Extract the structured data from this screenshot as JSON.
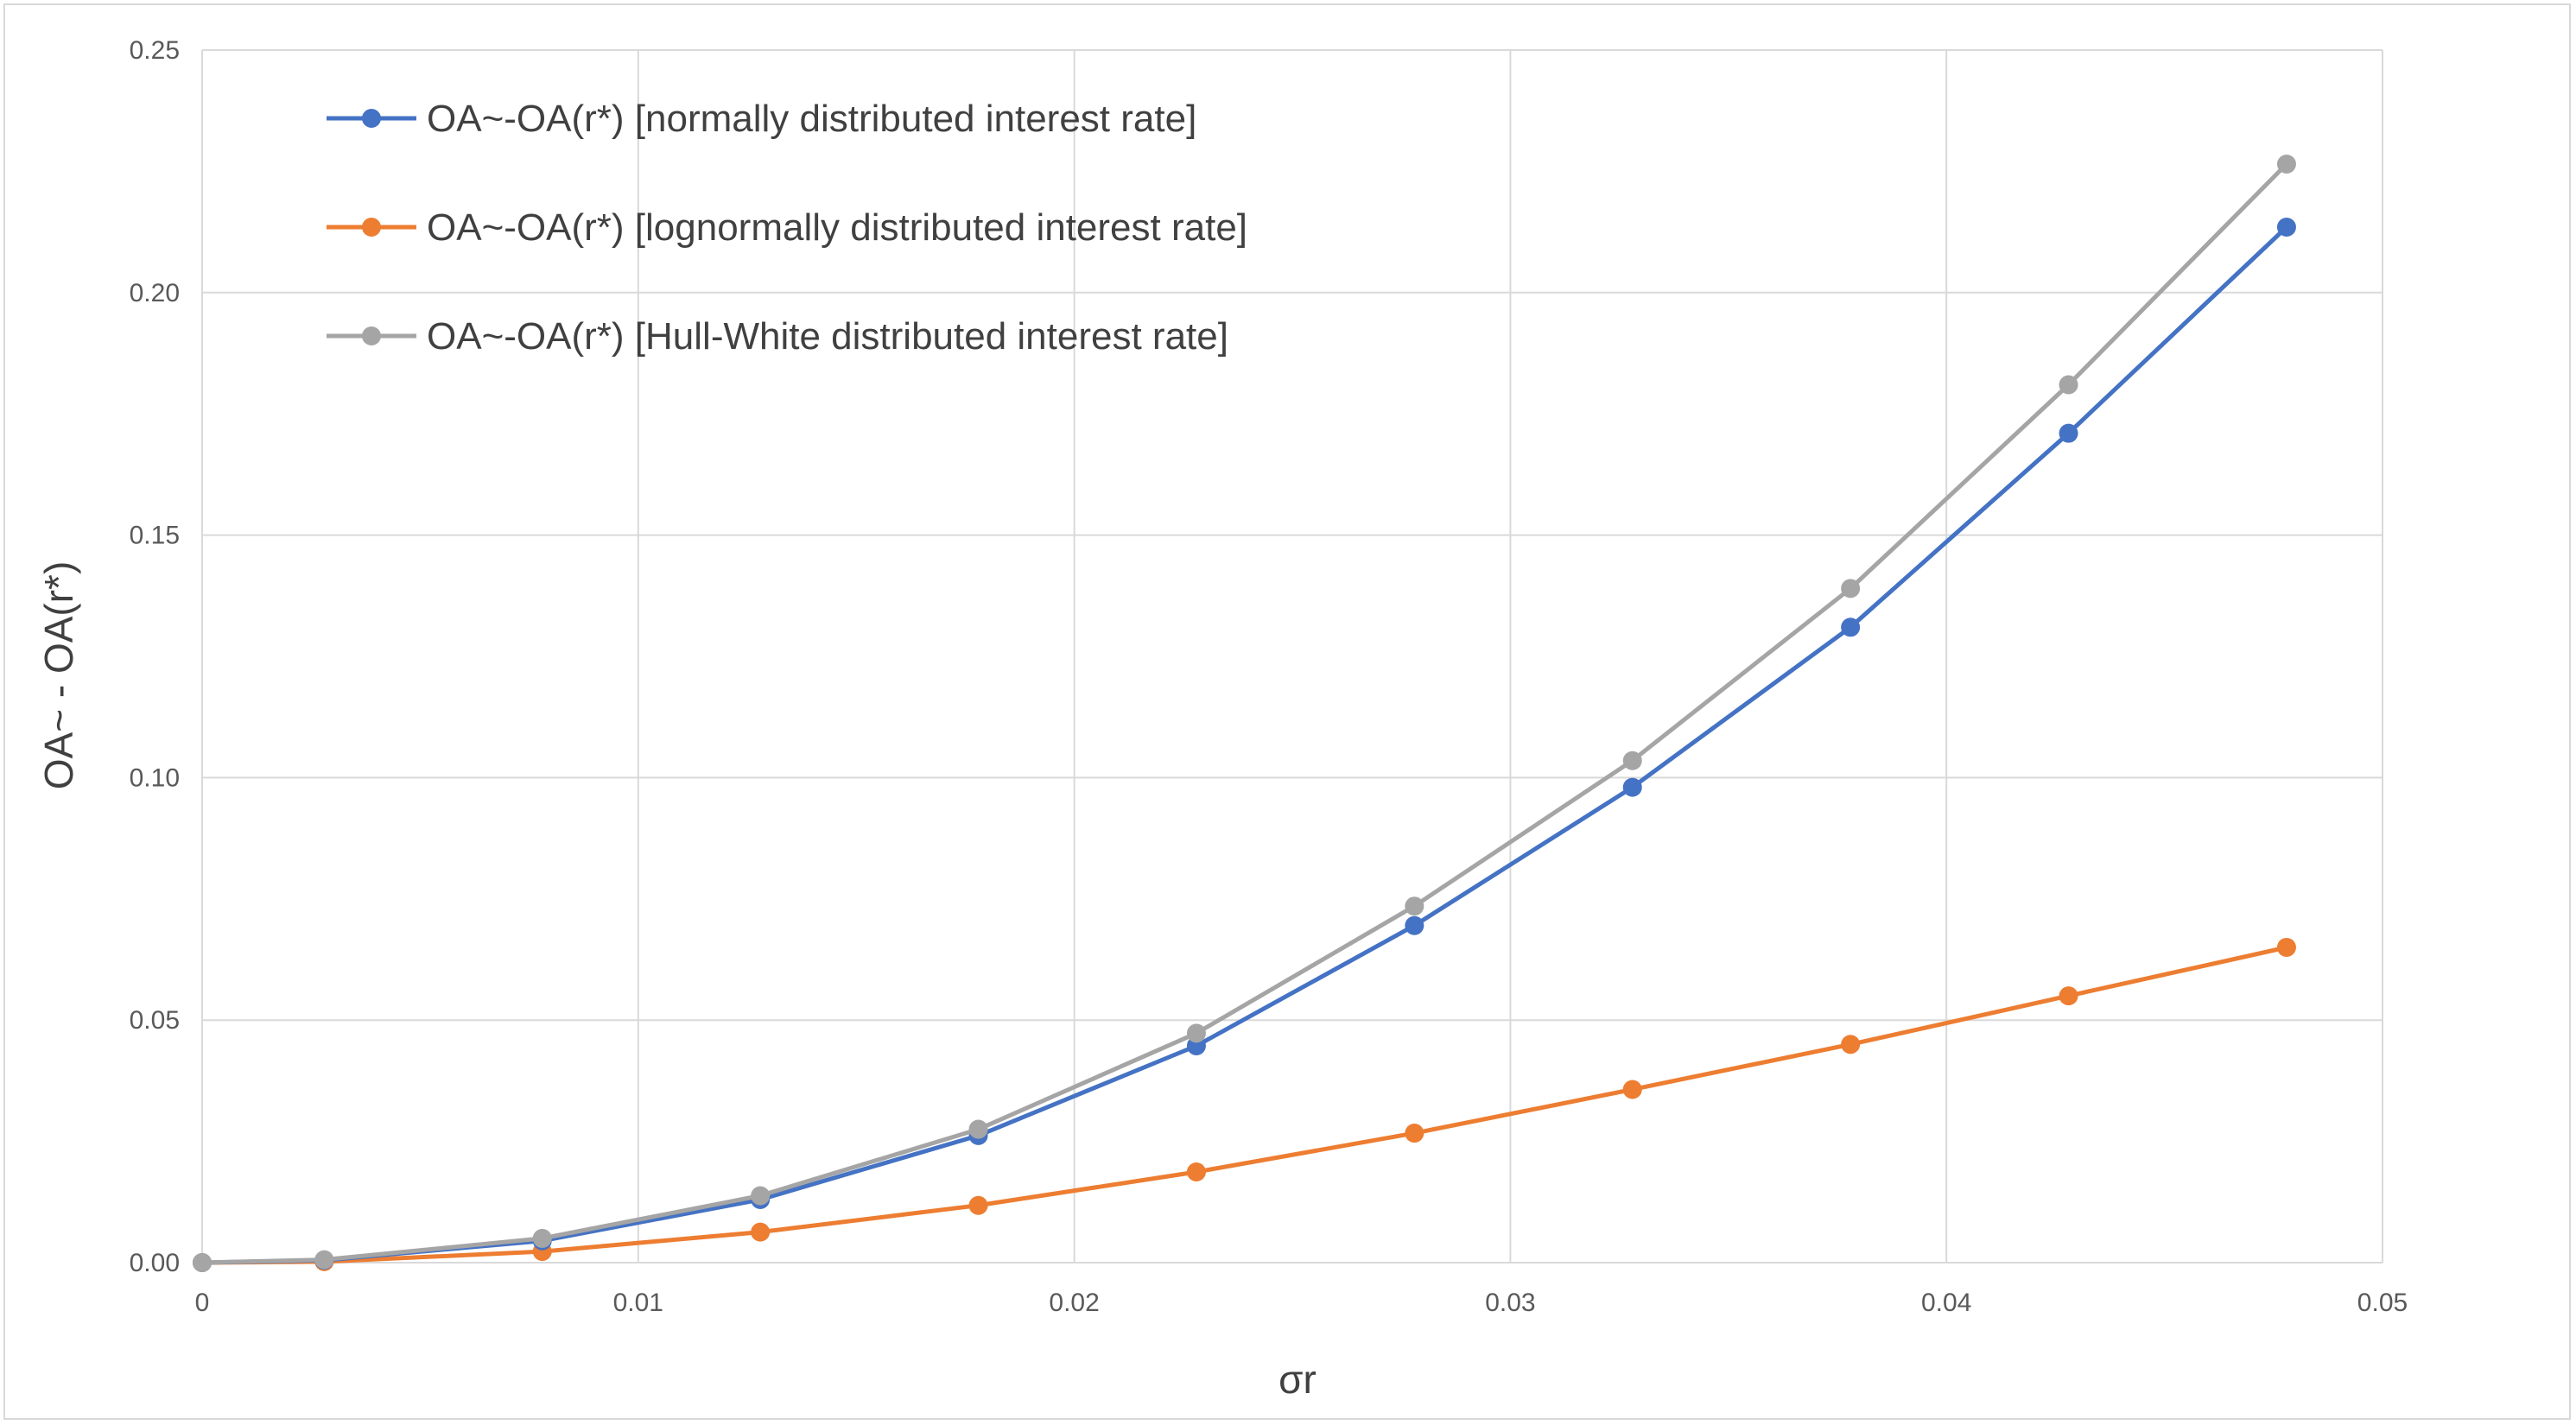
{
  "chart_data": {
    "type": "line",
    "title": "",
    "xlabel": "σr",
    "ylabel": "OA~ - OA(r*)",
    "xlim": [
      0,
      0.05
    ],
    "ylim": [
      0,
      0.25
    ],
    "x_ticks": [
      "0",
      "0.01",
      "0.02",
      "0.03",
      "0.04",
      "0.05"
    ],
    "y_ticks": [
      "0.00",
      "0.05",
      "0.10",
      "0.15",
      "0.20",
      "0.25"
    ],
    "grid": true,
    "legend_position": "top-left",
    "x": [
      0,
      0.0028,
      0.0078,
      0.0128,
      0.0178,
      0.0228,
      0.0278,
      0.0328,
      0.0378,
      0.0428,
      0.0478
    ],
    "series": [
      {
        "name": "OA~-OA(r*) [normally distributed interest rate]",
        "color": "#4472c4",
        "values": [
          0,
          0.0005,
          0.0045,
          0.013,
          0.0262,
          0.0447,
          0.0695,
          0.098,
          0.131,
          0.171,
          0.2135
        ]
      },
      {
        "name": "OA~-OA(r*) [lognormally distributed interest rate]",
        "color": "#ed7d31",
        "values": [
          0,
          0.0002,
          0.0023,
          0.0063,
          0.0118,
          0.0187,
          0.0267,
          0.0357,
          0.045,
          0.055,
          0.065
        ]
      },
      {
        "name": "OA~-OA(r*) [Hull-White distributed interest rate]",
        "color": "#a5a5a5",
        "values": [
          0,
          0.0006,
          0.005,
          0.0138,
          0.0275,
          0.0473,
          0.0735,
          0.1035,
          0.139,
          0.181,
          0.2265
        ]
      }
    ]
  }
}
